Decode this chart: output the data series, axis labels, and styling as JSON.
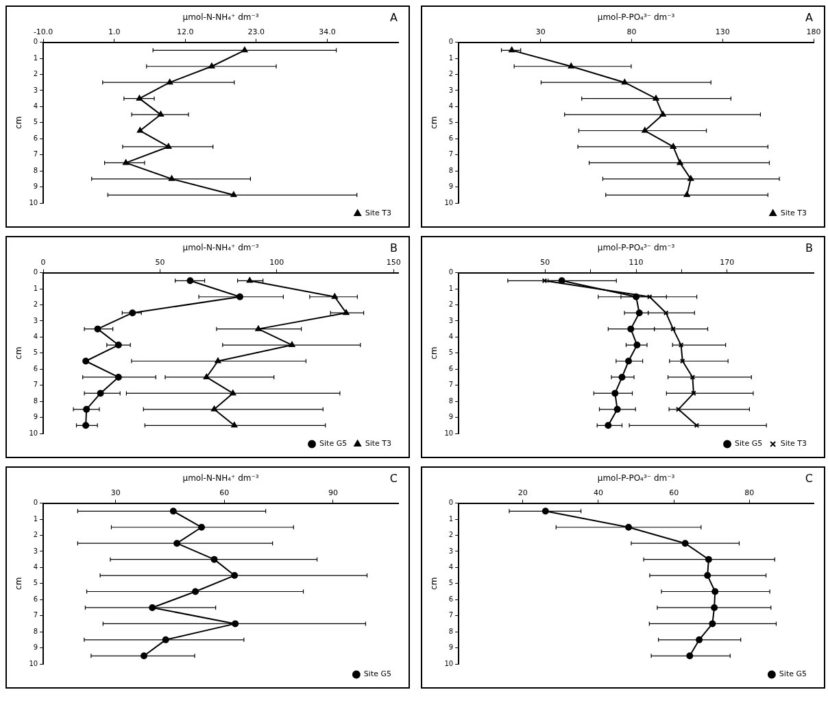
{
  "chart_data": [
    {
      "type": "line",
      "xlabel": "µmol-N-NH₄⁺ dm⁻³",
      "ylabel": "cm",
      "annotations": [
        "A"
      ],
      "xlim": [
        -10,
        45
      ],
      "xticks": [
        {
          "value": -10,
          "label": "-10.0"
        },
        {
          "value": 1,
          "label": "1.0"
        },
        {
          "value": 12,
          "label": "12.0"
        },
        {
          "value": 23,
          "label": "23.0"
        },
        {
          "value": 34,
          "label": "34.0"
        }
      ],
      "ylim": [
        10,
        0
      ],
      "yticks": [
        0,
        1,
        2,
        3,
        4,
        5,
        6,
        7,
        8,
        9,
        10
      ],
      "legend": "bottom right",
      "series": [
        {
          "name": "Site T3",
          "color": "#000000",
          "marker": "triangle",
          "x": [
            21.2,
            16.1,
            9.6,
            4.9,
            8.2,
            5.0,
            9.4,
            2.8,
            9.9,
            19.5
          ],
          "values": [
            0.5,
            1.5,
            2.5,
            3.5,
            4.5,
            5.5,
            6.5,
            7.5,
            8.5,
            9.5
          ],
          "xerrors": [
            [
              7.0,
              35.4
            ],
            [
              6.0,
              26.1
            ],
            [
              -0.8,
              19.6
            ],
            [
              2.5,
              7.2
            ],
            [
              3.7,
              12.5
            ],
            null,
            [
              2.3,
              16.3
            ],
            [
              -0.5,
              5.7
            ],
            [
              -2.5,
              22.1
            ],
            [
              0.0,
              38.6
            ]
          ]
        }
      ]
    },
    {
      "type": "line",
      "xlabel": "µmol-P-PO₄³⁻ dm⁻³",
      "ylabel": "cm",
      "annotations": [
        "A"
      ],
      "xlim": [
        -15,
        180
      ],
      "xticks": [
        30,
        80,
        130,
        180
      ],
      "ylim": [
        10,
        0
      ],
      "yticks": [
        0,
        1,
        2,
        3,
        4,
        5,
        6,
        7,
        8,
        9,
        10
      ],
      "legend": "bottom right",
      "series": [
        {
          "name": "Site T3",
          "color": "#000000",
          "marker": "triangle",
          "x": [
            14.2,
            46.8,
            76.2,
            93.4,
            97.2,
            87.3,
            102.9,
            106.6,
            112.5,
            110.4
          ],
          "values": [
            0.5,
            1.5,
            2.5,
            3.5,
            4.5,
            5.5,
            6.5,
            7.5,
            8.5,
            9.5
          ],
          "xerrors": [
            [
              8.5,
              19.1
            ],
            [
              15.5,
              79.8
            ],
            [
              30.3,
              123.6
            ],
            [
              52.6,
              134.6
            ],
            [
              43.2,
              150.8
            ],
            [
              51.0,
              121.1
            ],
            [
              50.5,
              154.9
            ],
            [
              56.7,
              155.7
            ],
            [
              64.2,
              161.2
            ],
            [
              65.8,
              154.9
            ]
          ]
        }
      ]
    },
    {
      "type": "line",
      "xlabel": "µmol-N-NH₄⁺ dm⁻³",
      "ylabel": "cm",
      "annotations": [
        "B"
      ],
      "xlim": [
        0,
        152
      ],
      "xticks": [
        0,
        50,
        100,
        150
      ],
      "ylim": [
        10,
        0
      ],
      "yticks": [
        0,
        1,
        2,
        3,
        4,
        5,
        6,
        7,
        8,
        9,
        10
      ],
      "legend": "bottom right",
      "series": [
        {
          "name": "Site G5",
          "color": "#000000",
          "marker": "circle",
          "x": [
            62.9,
            84.2,
            38.2,
            23.3,
            32.2,
            18.2,
            32.2,
            24.5,
            18.5,
            18.2
          ],
          "values": [
            0.5,
            1.5,
            2.5,
            3.5,
            4.5,
            5.5,
            6.5,
            7.5,
            8.5,
            9.5
          ],
          "xerrors": [
            [
              56.5,
              69.1
            ],
            [
              66.6,
              102.8
            ],
            [
              33.8,
              42.0
            ],
            [
              17.6,
              29.8
            ],
            [
              27.2,
              37.3
            ],
            null,
            [
              16.9,
              48.2
            ],
            [
              17.6,
              32.9
            ],
            [
              12.9,
              24.0
            ],
            [
              14.2,
              23.2
            ]
          ]
        },
        {
          "name": "Site T3",
          "color": "#000000",
          "marker": "triangle",
          "x": [
            88.4,
            124.8,
            129.7,
            92.1,
            106.5,
            74.8,
            69.9,
            81.2,
            73.2,
            81.8
          ],
          "values": [
            0.5,
            1.5,
            2.5,
            3.5,
            4.5,
            5.5,
            6.5,
            7.5,
            8.5,
            9.5
          ],
          "xerrors": [
            [
              83.2,
              94.1
            ],
            [
              114.1,
              134.5
            ],
            [
              123.0,
              137.2
            ],
            [
              74.2,
              110.5
            ],
            [
              76.8,
              135.8
            ],
            [
              37.8,
              112.5
            ],
            [
              52.2,
              98.8
            ],
            [
              35.6,
              127.0
            ],
            [
              42.9,
              119.8
            ],
            [
              43.5,
              120.8
            ]
          ]
        }
      ]
    },
    {
      "type": "line",
      "xlabel": "µmol-P-PO₄³⁻ dm⁻³",
      "ylabel": "cm",
      "annotations": [
        "B"
      ],
      "xlim": [
        -7,
        227
      ],
      "xticks": [
        50,
        {
          "value": 80,
          "label": null
        },
        110,
        {
          "value": 140,
          "label": null
        },
        170
      ],
      "ylim": [
        10,
        0
      ],
      "yticks": [
        0,
        1,
        2,
        3,
        4,
        5,
        6,
        7,
        8,
        9,
        10
      ],
      "legend": "bottom right",
      "series": [
        {
          "name": "Site G5",
          "color": "#000000",
          "marker": "circle",
          "x": [
            61.0,
            110.0,
            112.1,
            106.5,
            110.6,
            105.0,
            100.7,
            96.1,
            97.6,
            91.6
          ],
          "values": [
            0.5,
            1.5,
            2.5,
            3.5,
            4.5,
            5.5,
            6.5,
            7.5,
            8.5,
            9.5
          ],
          "xerrors": [
            [
              52,
              97
            ],
            [
              85,
              130
            ],
            [
              102.3,
              117.9
            ],
            [
              91.6,
              122.0
            ],
            [
              103.4,
              117.2
            ],
            [
              96.8,
              114.3
            ],
            [
              93.7,
              108.6
            ],
            [
              82.1,
              107.5
            ],
            [
              85.8,
              109.6
            ],
            [
              84.3,
              100.7
            ]
          ]
        },
        {
          "name": "Site T3",
          "color": "#000000",
          "marker": "cross",
          "x": [
            49.6,
            118.9,
            129.7,
            134.4,
            139.6,
            140.6,
            147.2,
            147.9,
            137.9,
            149.9
          ],
          "values": [
            0.5,
            1.5,
            2.5,
            3.5,
            4.5,
            5.5,
            6.5,
            7.5,
            8.5,
            9.5
          ],
          "xerrors": [
            [
              25.4,
              60
            ],
            [
              100,
              150
            ],
            [
              118,
              148.5
            ],
            [
              122,
              157.2
            ],
            [
              134,
              169
            ],
            [
              132,
              170.6
            ],
            [
              131,
              186
            ],
            [
              130,
              187.2
            ],
            [
              131.7,
              184.7
            ],
            [
              105.5,
              195.9
            ]
          ]
        }
      ]
    },
    {
      "type": "line",
      "xlabel": "µmol-N-NH₄⁺ dm⁻³",
      "ylabel": "cm",
      "annotations": [
        "C"
      ],
      "xlim": [
        10,
        108
      ],
      "xticks": [
        30,
        60,
        90
      ],
      "ylim": [
        10,
        0
      ],
      "yticks": [
        0,
        1,
        2,
        3,
        4,
        5,
        6,
        7,
        8,
        9,
        10
      ],
      "legend": "bottom right",
      "series": [
        {
          "name": "Site G5",
          "color": "#000000",
          "marker": "circle",
          "x": [
            45.9,
            53.7,
            46.9,
            57.2,
            62.8,
            52.0,
            40.1,
            63.0,
            43.8,
            37.8
          ],
          "values": [
            0.5,
            1.5,
            2.5,
            3.5,
            4.5,
            5.5,
            6.5,
            7.5,
            8.5,
            9.5
          ],
          "xerrors": [
            [
              19.5,
              71.4
            ],
            [
              28.8,
              79.1
            ],
            [
              19.5,
              73.3
            ],
            [
              28.5,
              85.6
            ],
            [
              25.7,
              99.4
            ],
            [
              22.0,
              81.8
            ],
            [
              21.6,
              57.6
            ],
            [
              26.5,
              99.0
            ],
            [
              21.3,
              65.4
            ],
            [
              23.2,
              51.8
            ]
          ]
        }
      ]
    },
    {
      "type": "line",
      "xlabel": "µmol-P-PO₄³⁻ dm⁻³",
      "ylabel": "cm",
      "annotations": [
        "C"
      ],
      "xlim": [
        3,
        97
      ],
      "xticks": [
        20,
        40,
        60,
        80
      ],
      "ylim": [
        10,
        0
      ],
      "yticks": [
        0,
        1,
        2,
        3,
        4,
        5,
        6,
        7,
        8,
        9,
        10
      ],
      "legend": "bottom right",
      "series": [
        {
          "name": "Site G5",
          "color": "#000000",
          "marker": "circle",
          "x": [
            26.0,
            48.0,
            63.0,
            69.2,
            68.9,
            70.9,
            70.7,
            70.2,
            66.7,
            64.2
          ],
          "values": [
            0.5,
            1.5,
            2.5,
            3.5,
            4.5,
            5.5,
            6.5,
            7.5,
            8.5,
            9.5
          ],
          "xerrors": [
            [
              16.4,
              35.4
            ],
            [
              28.8,
              67.2
            ],
            [
              48.7,
              77.3
            ],
            [
              52.0,
              86.7
            ],
            [
              53.6,
              84.4
            ],
            [
              56.7,
              85.4
            ],
            [
              55.6,
              85.7
            ],
            [
              53.5,
              87.1
            ],
            [
              55.9,
              77.7
            ],
            [
              54.0,
              74.9
            ]
          ]
        }
      ]
    }
  ]
}
